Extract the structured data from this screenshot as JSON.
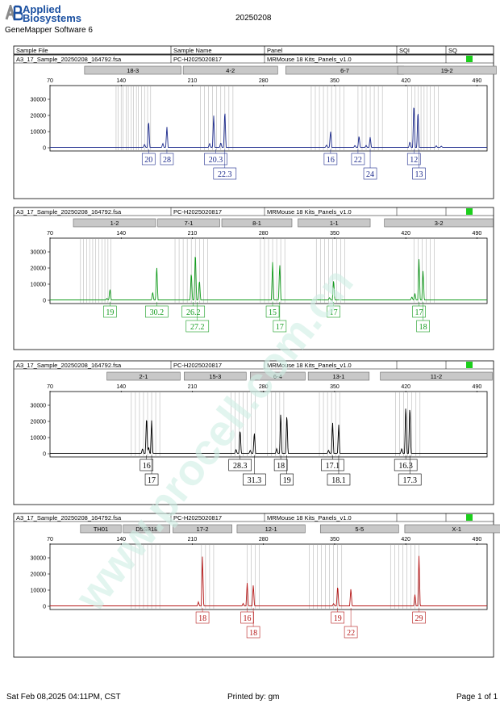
{
  "header": {
    "brand_line1": "Applied",
    "brand_line2": "Biosystems",
    "software": "GeneMapper Software 6",
    "date": "20250208"
  },
  "columns": [
    "Sample File",
    "Sample Name",
    "Panel",
    "SQI",
    "SQ"
  ],
  "colors": {
    "blue": "#1c2a8c",
    "green": "#129b1d",
    "black": "#000000",
    "red": "#b51818",
    "marker_fill": "#c8c8c8",
    "quality_flag": "#1bcf1b",
    "watermark": "#cfeee4"
  },
  "watermark_text": "www.procell.com.cn",
  "footer": {
    "left": "Sat Feb 08,2025 04:11PM, CST",
    "center": "Printed by: gm",
    "right": "Page 1 of 1"
  },
  "chart_data": [
    {
      "type": "line",
      "dye": "blue",
      "sample_file": "A3_17_Sample_20250208_164792.fsa",
      "sample_name": "PC-H2025020817",
      "panel": "MRMouse 18 Kits_Panels_v1.0",
      "xlim": [
        70,
        500
      ],
      "xticks": [
        70,
        140,
        210,
        280,
        350,
        420,
        490
      ],
      "ylim": [
        0,
        35000
      ],
      "yticks": [
        0,
        10000,
        20000,
        30000
      ],
      "markers": [
        {
          "name": "18-3",
          "start": 104,
          "end": 199
        },
        {
          "name": "4-2",
          "start": 201,
          "end": 294
        },
        {
          "name": "6-7",
          "start": 302,
          "end": 418
        },
        {
          "name": "19-2",
          "start": 412,
          "end": 509
        }
      ],
      "bins": [
        [
          135,
          137,
          140,
          142,
          145,
          147,
          150,
          152,
          155,
          157,
          160,
          163,
          166,
          169
        ],
        [
          218,
          222,
          226,
          230,
          234,
          238,
          242,
          246,
          250
        ],
        [
          327,
          331,
          335,
          339,
          343,
          347,
          351,
          355,
          359
        ],
        [
          373,
          377,
          381,
          385,
          389,
          393,
          397
        ],
        [
          422,
          426,
          429,
          432,
          435,
          438,
          441,
          444,
          448,
          452
        ]
      ],
      "peaks": [
        {
          "x": 167,
          "y": 17500
        },
        {
          "x": 163,
          "y": 2000
        },
        {
          "x": 185,
          "y": 13000
        },
        {
          "x": 181,
          "y": 2500
        },
        {
          "x": 231,
          "y": 20500
        },
        {
          "x": 227,
          "y": 2500
        },
        {
          "x": 242,
          "y": 24000
        },
        {
          "x": 238,
          "y": 3000
        },
        {
          "x": 346,
          "y": 10500
        },
        {
          "x": 342,
          "y": 1500
        },
        {
          "x": 374,
          "y": 7500
        },
        {
          "x": 370,
          "y": 1200
        },
        {
          "x": 385,
          "y": 6500
        },
        {
          "x": 381,
          "y": 1200
        },
        {
          "x": 428,
          "y": 29000
        },
        {
          "x": 424,
          "y": 3500
        },
        {
          "x": 432,
          "y": 24000
        },
        {
          "x": 450,
          "y": 1000
        },
        {
          "x": 455,
          "y": 800
        }
      ],
      "labels": [
        {
          "x": 167,
          "text": "20",
          "row": 0
        },
        {
          "x": 185,
          "text": "28",
          "row": 0
        },
        {
          "x": 233,
          "text": "20.3",
          "row": 0
        },
        {
          "x": 242,
          "text": "22.3",
          "row": 1
        },
        {
          "x": 346,
          "text": "16",
          "row": 0
        },
        {
          "x": 373,
          "text": "22",
          "row": 0
        },
        {
          "x": 385,
          "text": "24",
          "row": 1
        },
        {
          "x": 428,
          "text": "12",
          "row": 0
        },
        {
          "x": 433,
          "text": "13",
          "row": 1
        }
      ]
    },
    {
      "type": "line",
      "dye": "green",
      "sample_file": "A3_17_Sample_20250208_164792.fsa",
      "sample_name": "PC-H2025020817",
      "panel": "MRMouse 18 Kits_Panels_v1.0",
      "xlim": [
        70,
        500
      ],
      "xticks": [
        70,
        140,
        210,
        280,
        350,
        420,
        490
      ],
      "ylim": [
        0,
        35000
      ],
      "yticks": [
        0,
        10000,
        20000,
        30000
      ],
      "markers": [
        {
          "name": "1-2",
          "start": 93,
          "end": 174
        },
        {
          "name": "7-1",
          "start": 176,
          "end": 237
        },
        {
          "name": "8-1",
          "start": 239,
          "end": 308
        },
        {
          "name": "1-1",
          "start": 314,
          "end": 385
        },
        {
          "name": "3-2",
          "start": 399,
          "end": 506
        }
      ],
      "bins": [
        [
          100,
          103,
          106,
          109,
          112,
          115,
          118,
          121,
          124,
          127,
          130
        ],
        [
          193,
          197,
          201,
          205,
          209,
          213,
          217,
          221,
          225
        ],
        [
          277,
          281,
          285,
          289,
          293,
          297,
          301
        ],
        [
          332,
          336,
          340,
          344,
          348,
          352,
          356,
          360
        ],
        [
          428,
          432,
          436,
          440,
          444,
          448
        ]
      ],
      "peaks": [
        {
          "x": 129,
          "y": 7000
        },
        {
          "x": 126,
          "y": 1000
        },
        {
          "x": 171,
          "y": 5000
        },
        {
          "x": 175,
          "y": 22000
        },
        {
          "x": 209,
          "y": 18000
        },
        {
          "x": 213,
          "y": 31500
        },
        {
          "x": 217,
          "y": 13000
        },
        {
          "x": 289,
          "y": 24000
        },
        {
          "x": 296,
          "y": 23500
        },
        {
          "x": 349,
          "y": 13000
        },
        {
          "x": 345,
          "y": 1500
        },
        {
          "x": 426,
          "y": 2000
        },
        {
          "x": 433,
          "y": 26000
        },
        {
          "x": 437,
          "y": 19000
        },
        {
          "x": 429,
          "y": 4000
        }
      ],
      "labels": [
        {
          "x": 129,
          "text": "19",
          "row": 0
        },
        {
          "x": 175,
          "text": "30.2",
          "row": 0
        },
        {
          "x": 211,
          "text": "26.2",
          "row": 0
        },
        {
          "x": 215,
          "text": "27.2",
          "row": 1
        },
        {
          "x": 289,
          "text": "15",
          "row": 0
        },
        {
          "x": 296,
          "text": "17",
          "row": 1
        },
        {
          "x": 349,
          "text": "17",
          "row": 0
        },
        {
          "x": 433,
          "text": "17",
          "row": 0
        },
        {
          "x": 437,
          "text": "18",
          "row": 1
        }
      ]
    },
    {
      "type": "line",
      "dye": "black",
      "sample_file": "A3_17_Sample_20250208_164792.fsa",
      "sample_name": "PC-H2025020817",
      "panel": "MRMouse 18 Kits_Panels_v1.0",
      "xlim": [
        70,
        500
      ],
      "xticks": [
        70,
        140,
        210,
        280,
        350,
        420,
        490
      ],
      "ylim": [
        0,
        35000
      ],
      "yticks": [
        0,
        10000,
        20000,
        30000
      ],
      "markers": [
        {
          "name": "2-1",
          "start": 126,
          "end": 198
        },
        {
          "name": "15-3",
          "start": 202,
          "end": 263
        },
        {
          "name": "6-4",
          "start": 267,
          "end": 321
        },
        {
          "name": "13-1",
          "start": 324,
          "end": 384
        },
        {
          "name": "11-2",
          "start": 395,
          "end": 505
        }
      ],
      "bins": [
        [
          150,
          154,
          158,
          162,
          166,
          170,
          174,
          178
        ],
        [
          248,
          252,
          256,
          260,
          264,
          268,
          272
        ],
        [
          284,
          288,
          292,
          296,
          300
        ],
        [
          335,
          339,
          343,
          347,
          351,
          355
        ],
        [
          410,
          414,
          418,
          422,
          426,
          430,
          434
        ]
      ],
      "peaks": [
        {
          "x": 165,
          "y": 24000
        },
        {
          "x": 161,
          "y": 3000
        },
        {
          "x": 170,
          "y": 21000
        },
        {
          "x": 167,
          "y": 4000
        },
        {
          "x": 257,
          "y": 15500
        },
        {
          "x": 253,
          "y": 2500
        },
        {
          "x": 271,
          "y": 13500
        },
        {
          "x": 267,
          "y": 2000
        },
        {
          "x": 297,
          "y": 26000
        },
        {
          "x": 293,
          "y": 3000
        },
        {
          "x": 303,
          "y": 25500
        },
        {
          "x": 348,
          "y": 20000
        },
        {
          "x": 344,
          "y": 2000
        },
        {
          "x": 354,
          "y": 18000
        },
        {
          "x": 420,
          "y": 31000
        },
        {
          "x": 416,
          "y": 3000
        },
        {
          "x": 424,
          "y": 31000
        }
      ],
      "labels": [
        {
          "x": 165,
          "text": "16",
          "row": 0
        },
        {
          "x": 170,
          "text": "17",
          "row": 1
        },
        {
          "x": 257,
          "text": "28.3",
          "row": 0
        },
        {
          "x": 271,
          "text": "31.3",
          "row": 1
        },
        {
          "x": 297,
          "text": "18",
          "row": 0
        },
        {
          "x": 303,
          "text": "19",
          "row": 1
        },
        {
          "x": 348,
          "text": "17.1",
          "row": 0
        },
        {
          "x": 354,
          "text": "18.1",
          "row": 1
        },
        {
          "x": 420,
          "text": "16.3",
          "row": 0
        },
        {
          "x": 424,
          "text": "17.3",
          "row": 1
        }
      ]
    },
    {
      "type": "line",
      "dye": "red",
      "sample_file": "A3_17_Sample_20250208_164792.fsa",
      "sample_name": "PC-H2025020817",
      "panel": "MRMouse 18 Kits_Panels_v1.0",
      "xlim": [
        70,
        500
      ],
      "xticks": [
        70,
        140,
        210,
        280,
        350,
        420,
        490
      ],
      "ylim": [
        0,
        35000
      ],
      "yticks": [
        0,
        10000,
        20000,
        30000
      ],
      "markers": [
        {
          "name": "TH01",
          "start": 100,
          "end": 140
        },
        {
          "name": "D5S818",
          "start": 142,
          "end": 188
        },
        {
          "name": "17-2",
          "start": 191,
          "end": 249
        },
        {
          "name": "12-1",
          "start": 254,
          "end": 321
        },
        {
          "name": "5-5",
          "start": 336,
          "end": 413
        },
        {
          "name": "X-1",
          "start": 419,
          "end": 521
        }
      ],
      "bins": [
        [
          150,
          154,
          158,
          162,
          166,
          170,
          174,
          178
        ],
        [
          219,
          223,
          227,
          231
        ],
        [
          264,
          268,
          272,
          276
        ],
        [
          325,
          329,
          333,
          337,
          341,
          345,
          349,
          353,
          357
        ],
        [
          405,
          409,
          413,
          417,
          421,
          425,
          429,
          433
        ]
      ],
      "peaks": [
        {
          "x": 220,
          "y": 32000
        },
        {
          "x": 216,
          "y": 2500
        },
        {
          "x": 264,
          "y": 14500
        },
        {
          "x": 260,
          "y": 1500
        },
        {
          "x": 270,
          "y": 13500
        },
        {
          "x": 353,
          "y": 13000
        },
        {
          "x": 349,
          "y": 1500
        },
        {
          "x": 366,
          "y": 11000
        },
        {
          "x": 433,
          "y": 32000
        },
        {
          "x": 429,
          "y": 7000
        }
      ],
      "labels": [
        {
          "x": 220,
          "text": "18",
          "row": 0
        },
        {
          "x": 264,
          "text": "16",
          "row": 0
        },
        {
          "x": 270,
          "text": "18",
          "row": 1
        },
        {
          "x": 353,
          "text": "19",
          "row": 0
        },
        {
          "x": 366,
          "text": "22",
          "row": 1
        },
        {
          "x": 433,
          "text": "29",
          "row": 0
        }
      ]
    }
  ]
}
